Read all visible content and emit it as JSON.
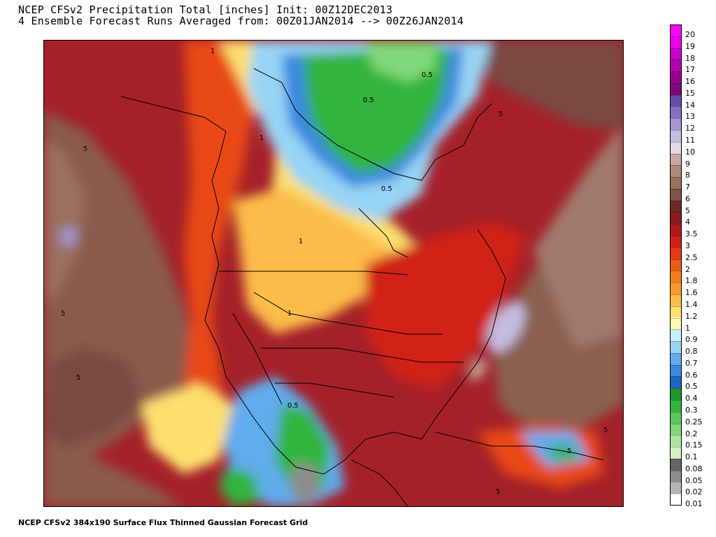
{
  "header": {
    "title_line1": "NCEP CFSv2 Precipitation Total [inches] Init: 00Z12DEC2013",
    "title_line2": "4 Ensemble Forecast Runs Averaged from: 00Z01JAN2014 --> 00Z26JAN2014"
  },
  "footer": {
    "text": "NCEP CFSv2 384x190 Surface Flux Thinned Gaussian Forecast Grid"
  },
  "legend": {
    "items": [
      {
        "label": "20",
        "color": "#ff00ff"
      },
      {
        "label": "19",
        "color": "#e600e6"
      },
      {
        "label": "18",
        "color": "#cc00cc"
      },
      {
        "label": "17",
        "color": "#b300b3"
      },
      {
        "label": "16",
        "color": "#99008f"
      },
      {
        "label": "15",
        "color": "#7a0a7a"
      },
      {
        "label": "14",
        "color": "#6a4aa8"
      },
      {
        "label": "13",
        "color": "#8470c0"
      },
      {
        "label": "12",
        "color": "#a497d2"
      },
      {
        "label": "11",
        "color": "#c4bde0"
      },
      {
        "label": "10",
        "color": "#e2d8e6"
      },
      {
        "label": "9",
        "color": "#c8a8a0"
      },
      {
        "label": "8",
        "color": "#b08878"
      },
      {
        "label": "7",
        "color": "#9a7060"
      },
      {
        "label": "6",
        "color": "#805448"
      },
      {
        "label": "5",
        "color": "#6a2a28"
      },
      {
        "label": "4",
        "color": "#8c1a1e"
      },
      {
        "label": "3.5",
        "color": "#b01818"
      },
      {
        "label": "3",
        "color": "#d02018"
      },
      {
        "label": "2.5",
        "color": "#e83818"
      },
      {
        "label": "2",
        "color": "#f05818"
      },
      {
        "label": "1.8",
        "color": "#f47c20"
      },
      {
        "label": "1.6",
        "color": "#f89a30"
      },
      {
        "label": "1.4",
        "color": "#fbbc48"
      },
      {
        "label": "1.2",
        "color": "#fde070"
      },
      {
        "label": "1",
        "color": "#fff8b0"
      },
      {
        "label": "0.9",
        "color": "#c8f0f8"
      },
      {
        "label": "0.8",
        "color": "#98d4f4"
      },
      {
        "label": "0.7",
        "color": "#60acec"
      },
      {
        "label": "0.6",
        "color": "#3a88e0"
      },
      {
        "label": "0.5",
        "color": "#1e64c8"
      },
      {
        "label": "0.4",
        "color": "#1e9628"
      },
      {
        "label": "0.3",
        "color": "#32b43c"
      },
      {
        "label": "0.25",
        "color": "#5ac85a"
      },
      {
        "label": "0.2",
        "color": "#82d87a"
      },
      {
        "label": "0.15",
        "color": "#aae69c"
      },
      {
        "label": "0.1",
        "color": "#d2f4c4"
      },
      {
        "label": "0.08",
        "color": "#646464"
      },
      {
        "label": "0.05",
        "color": "#8c8c8c"
      },
      {
        "label": "0.02",
        "color": "#b4b4b4"
      },
      {
        "label": "0.01",
        "color": "#ffffff"
      }
    ]
  },
  "map": {
    "contour_labels": [
      "1",
      "1",
      "0.5",
      "0.5",
      "0.5",
      "1",
      "5",
      "5",
      "5",
      "5",
      "1",
      "0.5",
      "5",
      "5",
      "5"
    ],
    "background_color": "#a4212a"
  }
}
